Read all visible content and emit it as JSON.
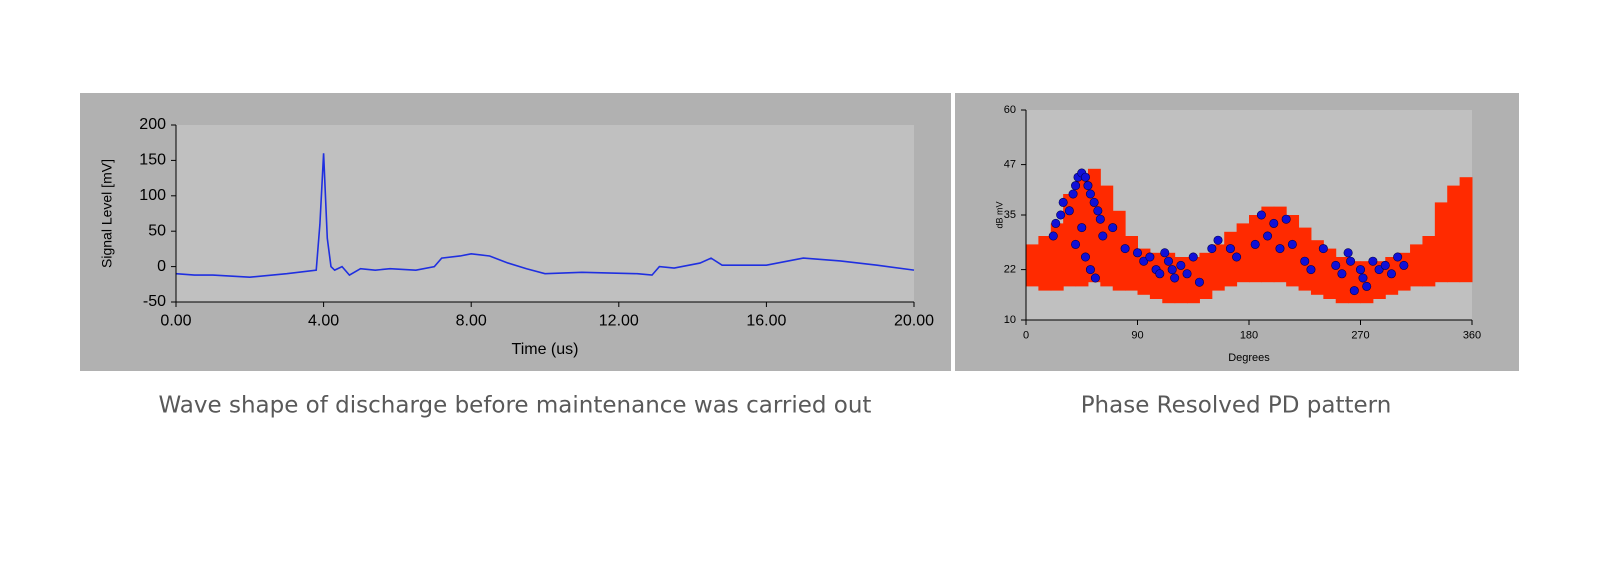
{
  "chart_data": [
    {
      "type": "line",
      "caption": "Wave shape of discharge before maintenance was carried out",
      "xlabel": "Time (us)",
      "ylabel": "Signal Level [mV]",
      "x": [
        0,
        0.5,
        1,
        2,
        3,
        3.8,
        3.9,
        4.0,
        4.1,
        4.2,
        4.3,
        4.5,
        4.7,
        5,
        5.4,
        5.8,
        6.5,
        7,
        7.2,
        7.7,
        8,
        8.5,
        9,
        9.5,
        10,
        11,
        12.5,
        12.9,
        13.1,
        13.5,
        14.2,
        14.5,
        14.8,
        16,
        17,
        18,
        19,
        20
      ],
      "values": [
        -10,
        -12,
        -12,
        -15,
        -10,
        -5,
        60,
        160,
        40,
        0,
        -5,
        0,
        -12,
        -3,
        -5,
        -3,
        -5,
        0,
        12,
        15,
        18,
        15,
        5,
        -3,
        -10,
        -8,
        -10,
        -12,
        0,
        -2,
        5,
        12,
        2,
        2,
        12,
        8,
        2,
        -5
      ],
      "color": "#1f2fe0",
      "xlim": [
        0,
        20
      ],
      "xticks": [
        {
          "value": 0,
          "label": "0.00"
        },
        {
          "value": 4,
          "label": "4.00"
        },
        {
          "value": 8,
          "label": "8.00"
        },
        {
          "value": 12,
          "label": "12.00"
        },
        {
          "value": 16,
          "label": "16.00"
        },
        {
          "value": 20,
          "label": "20.00"
        }
      ],
      "ylim": [
        -50,
        200
      ],
      "yticks": [
        -50,
        0,
        50,
        100,
        150,
        200
      ]
    },
    {
      "type": "scatter",
      "caption": "Phase Resolved PD pattern",
      "xlabel": "Degrees",
      "ylabel": "dB mV",
      "xlim": [
        0,
        360
      ],
      "xticks": [
        0,
        90,
        180,
        270,
        360
      ],
      "ylim": [
        10,
        60
      ],
      "yticks": [
        10,
        22,
        35,
        47,
        60
      ],
      "band": {
        "color": "#ff2a00",
        "x": [
          0,
          10,
          20,
          30,
          40,
          50,
          60,
          70,
          80,
          90,
          100,
          110,
          120,
          130,
          140,
          150,
          160,
          170,
          180,
          190,
          200,
          210,
          220,
          230,
          240,
          250,
          260,
          270,
          280,
          290,
          300,
          310,
          320,
          330,
          340,
          350
        ],
        "low": [
          18,
          17,
          17,
          18,
          18,
          19,
          18,
          17,
          17,
          16,
          15,
          14,
          14,
          14,
          15,
          17,
          18,
          19,
          19,
          19,
          19,
          18,
          17,
          16,
          15,
          14,
          14,
          14,
          15,
          16,
          17,
          18,
          18,
          19,
          19,
          19
        ],
        "high": [
          28,
          30,
          33,
          40,
          44,
          46,
          42,
          36,
          30,
          27,
          26,
          26,
          25,
          25,
          26,
          28,
          31,
          33,
          35,
          37,
          37,
          35,
          32,
          29,
          27,
          25,
          24,
          24,
          24,
          25,
          26,
          28,
          30,
          38,
          42,
          44
        ]
      },
      "points": {
        "color": "#1010d8",
        "x": [
          22,
          24,
          28,
          30,
          35,
          38,
          40,
          42,
          45,
          48,
          50,
          52,
          55,
          58,
          60,
          62,
          48,
          52,
          56,
          40,
          45,
          70,
          80,
          90,
          95,
          100,
          105,
          108,
          112,
          115,
          118,
          120,
          125,
          130,
          135,
          140,
          150,
          155,
          165,
          170,
          185,
          190,
          195,
          200,
          205,
          210,
          215,
          225,
          230,
          240,
          250,
          255,
          260,
          262,
          265,
          270,
          272,
          275,
          280,
          285,
          290,
          295,
          300,
          305
        ],
        "y": [
          30,
          33,
          35,
          38,
          36,
          40,
          42,
          44,
          45,
          44,
          42,
          40,
          38,
          36,
          34,
          30,
          25,
          22,
          20,
          28,
          32,
          32,
          27,
          26,
          24,
          25,
          22,
          21,
          26,
          24,
          22,
          20,
          23,
          21,
          25,
          19,
          27,
          29,
          27,
          25,
          28,
          35,
          30,
          33,
          27,
          34,
          28,
          24,
          22,
          27,
          23,
          21,
          26,
          24,
          17,
          22,
          20,
          18,
          24,
          22,
          23,
          21,
          25,
          23
        ]
      }
    }
  ]
}
